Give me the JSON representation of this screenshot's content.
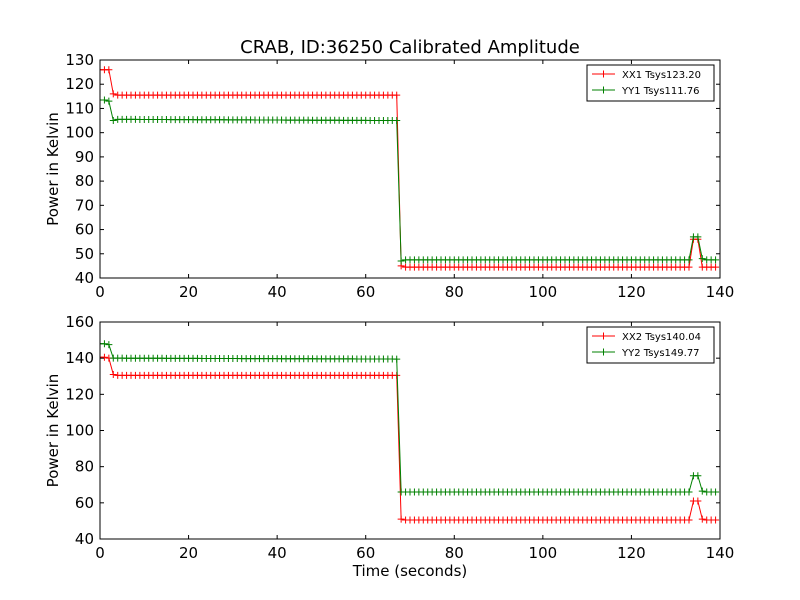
{
  "chart_data": [
    {
      "type": "line",
      "title": "CRAB, ID:36250 Calibrated Amplitude",
      "xlabel": "",
      "ylabel": "Power in Kelvin",
      "xlim": [
        0,
        140
      ],
      "ylim": [
        40,
        130
      ],
      "xticks": [
        0,
        20,
        40,
        60,
        80,
        100,
        120,
        140
      ],
      "yticks": [
        40,
        50,
        60,
        70,
        80,
        90,
        100,
        110,
        120,
        130
      ],
      "legend_position": "top-right",
      "marker": "+",
      "series": [
        {
          "name": "XX1 Tsys123.20",
          "color": "#ff0000",
          "x": [
            0,
            1,
            2,
            3,
            4,
            67,
            68,
            69,
            132,
            133,
            134,
            135,
            136,
            137,
            138,
            139
          ],
          "y": [
            126,
            126,
            126,
            116,
            115.5,
            115.5,
            45,
            44.5,
            44.5,
            44.5,
            56,
            56,
            44.5,
            44.5,
            44.5,
            44.5
          ]
        },
        {
          "name": "YY1 Tsys111.76",
          "color": "#008000",
          "x": [
            0,
            1,
            2,
            3,
            4,
            67,
            68,
            69,
            132,
            133,
            134,
            135,
            136,
            137,
            138,
            139
          ],
          "y": [
            113.5,
            113.5,
            113,
            105,
            105.5,
            105,
            47,
            47.5,
            47.5,
            47.5,
            57,
            57,
            48,
            47.5,
            47.5,
            47.5
          ]
        }
      ]
    },
    {
      "type": "line",
      "title": "",
      "xlabel": "Time (seconds)",
      "ylabel": "Power in Kelvin",
      "xlim": [
        0,
        140
      ],
      "ylim": [
        40,
        160
      ],
      "xticks": [
        0,
        20,
        40,
        60,
        80,
        100,
        120,
        140
      ],
      "yticks": [
        40,
        60,
        80,
        100,
        120,
        140,
        160
      ],
      "legend_position": "top-right",
      "marker": "+",
      "series": [
        {
          "name": "XX2 Tsys140.04",
          "color": "#ff0000",
          "x": [
            0,
            1,
            2,
            3,
            4,
            67,
            68,
            69,
            132,
            133,
            134,
            135,
            136,
            137,
            138,
            139
          ],
          "y": [
            140.5,
            140.5,
            140,
            131,
            130.5,
            130.5,
            51,
            50.5,
            50.5,
            50.5,
            61,
            61,
            51,
            50.5,
            50.5,
            50.5
          ]
        },
        {
          "name": "YY2 Tsys149.77",
          "color": "#008000",
          "x": [
            0,
            1,
            2,
            3,
            4,
            67,
            68,
            69,
            132,
            133,
            134,
            135,
            136,
            137,
            138,
            139
          ],
          "y": [
            148,
            148,
            147.5,
            140,
            140,
            139.5,
            66,
            66,
            66,
            66,
            75,
            75,
            66.5,
            66,
            66,
            66
          ]
        }
      ]
    }
  ]
}
